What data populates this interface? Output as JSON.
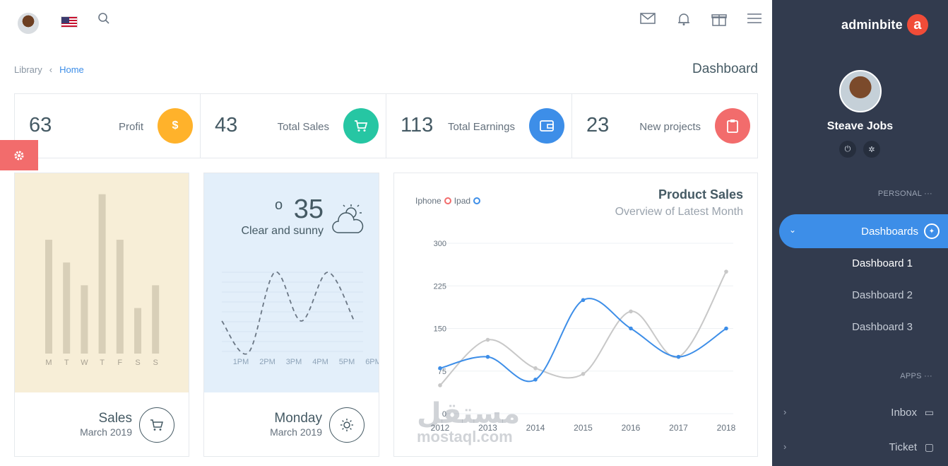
{
  "topbar": {
    "icons": [
      "user-avatar",
      "us-flag-icon",
      "search-icon",
      "mail-icon",
      "bell-icon",
      "gift-icon",
      "menu-icon"
    ]
  },
  "breadcrumb": {
    "library": "Library",
    "home": "Home"
  },
  "page_title": "Dashboard",
  "stats": [
    {
      "value": "63",
      "label": "Profit",
      "color": "#ffb22b",
      "icon": "dollar-icon",
      "glyph": "$"
    },
    {
      "value": "43",
      "label": "Total Sales",
      "color": "#26c6a3",
      "icon": "cart-icon",
      "glyph": "🛒"
    },
    {
      "value": "113",
      "label": "Total Earnings",
      "color": "#3d8ee8",
      "icon": "wallet-icon",
      "glyph": "▣"
    },
    {
      "value": "23",
      "label": "New projects",
      "color": "#f26c6c",
      "icon": "clipboard-icon",
      "glyph": "▯"
    }
  ],
  "sales_panel": {
    "title": "Sales",
    "subtitle": "March 2019",
    "bg": "#f7eed7",
    "bar_color": "#d8cfb8"
  },
  "weather_panel": {
    "temp": "35",
    "degree": "o",
    "desc": "Clear and sunny",
    "title": "Monday",
    "subtitle": "March 2019",
    "bg": "#e3effa"
  },
  "product_sales": {
    "title": "Product Sales",
    "subtitle": "Overview of Latest Month",
    "legend": [
      {
        "name": "Iphone",
        "color": "#f26c6c"
      },
      {
        "name": "Ipad",
        "color": "#3d8ee8"
      }
    ]
  },
  "sidebar": {
    "logo": "adminbite",
    "logo_letter": "a",
    "user": "Steave Jobs",
    "personal_label": "PERSONAL ···",
    "active_item": "Dashboards",
    "sub_items": [
      "Dashboard 1",
      "Dashboard 2",
      "Dashboard 3"
    ],
    "apps_label": "APPS ···",
    "apps": [
      {
        "label": "Inbox",
        "icon": "inbox-icon",
        "glyph": "▭"
      },
      {
        "label": "Ticket",
        "icon": "ticket-icon",
        "glyph": "▢"
      }
    ]
  },
  "watermark": {
    "arabic": "مستقل",
    "latin": "mostaql.com"
  },
  "chart_data": [
    {
      "type": "bar",
      "categories": [
        "M",
        "T",
        "W",
        "T",
        "F",
        "S",
        "S"
      ],
      "values": [
        5,
        4,
        3,
        7,
        5,
        2,
        3
      ],
      "ylim": [
        0,
        7.3
      ]
    },
    {
      "type": "line",
      "categories": [
        "1PM",
        "2PM",
        "3PM",
        "4PM",
        "5PM",
        "6PM"
      ],
      "values": [
        1.5,
        0,
        3.8,
        1.5,
        3.8,
        1.5
      ],
      "ylim": [
        0,
        4
      ]
    },
    {
      "type": "line",
      "x": [
        "2012",
        "2013",
        "2014",
        "2015",
        "2016",
        "2017",
        "2018"
      ],
      "series": [
        {
          "name": "Iphone",
          "color": "#c8c8c8",
          "values": [
            50,
            130,
            80,
            70,
            180,
            100,
            250
          ]
        },
        {
          "name": "Ipad",
          "color": "#3d8ee8",
          "values": [
            80,
            100,
            60,
            200,
            150,
            100,
            150
          ]
        }
      ],
      "yticks": [
        0,
        75,
        150,
        225,
        300
      ],
      "ylim": [
        0,
        300
      ]
    }
  ]
}
